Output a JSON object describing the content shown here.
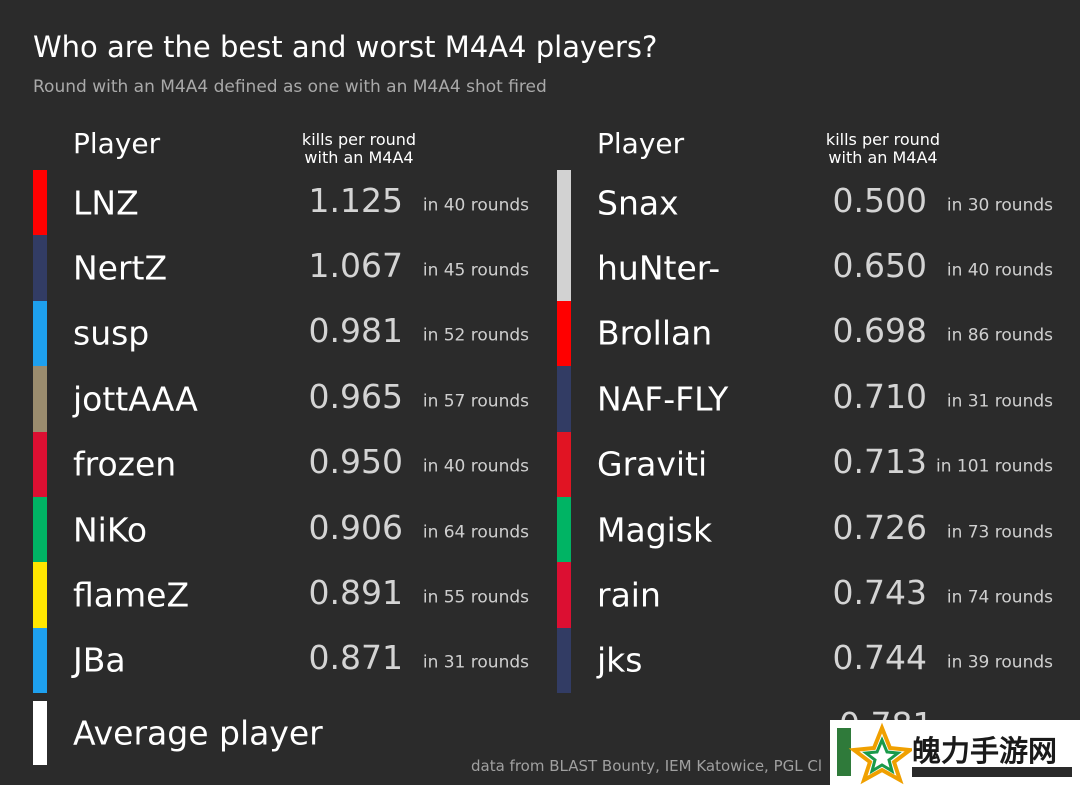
{
  "header": {
    "title": "Who are the best and worst M4A4 players?",
    "subtitle": "Round with an M4A4 defined as one with an M4A4 shot fired"
  },
  "columns": {
    "player_label": "Player",
    "metric_label_line1": "kills per round",
    "metric_label_line2": "with an M4A4"
  },
  "chart_data": {
    "type": "table",
    "metric": "kills per round with an M4A4",
    "best": [
      {
        "player": "LNZ",
        "value": "1.125",
        "rounds": "in 40 rounds",
        "color": "#ff0000"
      },
      {
        "player": "NertZ",
        "value": "1.067",
        "rounds": "in 45 rounds",
        "color": "#323c64"
      },
      {
        "player": "susp",
        "value": "0.981",
        "rounds": "in 52 rounds",
        "color": "#1ea0ee"
      },
      {
        "player": "jottAAA",
        "value": "0.965",
        "rounds": "in 57 rounds",
        "color": "#9b8c6e"
      },
      {
        "player": "frozen",
        "value": "0.950",
        "rounds": "in 40 rounds",
        "color": "#dc0f32"
      },
      {
        "player": "NiKo",
        "value": "0.906",
        "rounds": "in 64 rounds",
        "color": "#00b464"
      },
      {
        "player": "flameZ",
        "value": "0.891",
        "rounds": "in 55 rounds",
        "color": "#ffe600"
      },
      {
        "player": "JBa",
        "value": "0.871",
        "rounds": "in 31 rounds",
        "color": "#1ea0ee"
      }
    ],
    "worst": [
      {
        "player": "Snax",
        "value": "0.500",
        "rounds": "in 30 rounds",
        "color": "#d2d2d2"
      },
      {
        "player": "huNter-",
        "value": "0.650",
        "rounds": "in 40 rounds",
        "color": "#d2d2d2"
      },
      {
        "player": "Brollan",
        "value": "0.698",
        "rounds": "in 86 rounds",
        "color": "#ff0000"
      },
      {
        "player": "NAF-FLY",
        "value": "0.710",
        "rounds": "in 31 rounds",
        "color": "#323c64"
      },
      {
        "player": "Graviti",
        "value": "0.713",
        "rounds": "in 101 rounds",
        "color": "#e11423"
      },
      {
        "player": "Magisk",
        "value": "0.726",
        "rounds": "in 73 rounds",
        "color": "#00b464"
      },
      {
        "player": "rain",
        "value": "0.743",
        "rounds": "in 74 rounds",
        "color": "#dc0f32"
      },
      {
        "player": "jks",
        "value": "0.744",
        "rounds": "in 39 rounds",
        "color": "#323c64"
      }
    ],
    "average": {
      "player": "Average player",
      "value": "0.781",
      "color": "#ffffff"
    }
  },
  "footer": {
    "source": "data from BLAST Bounty, IEM Katowice, PGL Cl"
  },
  "watermark": {
    "text": "魄力手游网",
    "icon": "star-logo-icon"
  }
}
